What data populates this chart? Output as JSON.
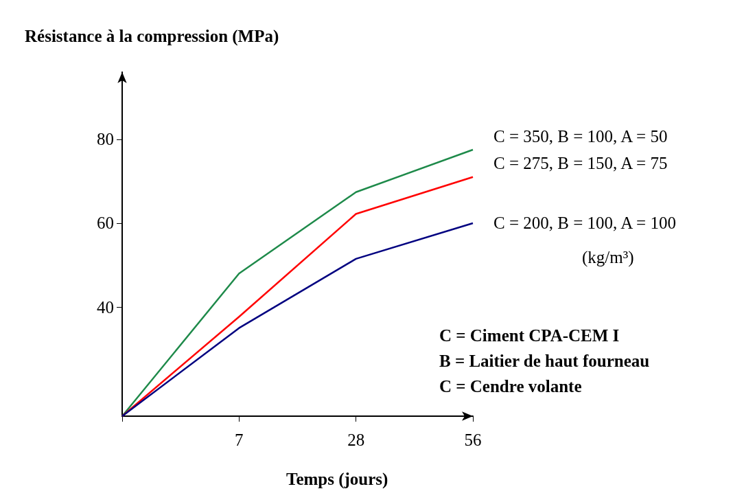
{
  "chart_data": {
    "type": "line",
    "ylabel": "Résistance à la compression (MPa)",
    "xlabel": "Temps (jours)",
    "categories": [
      null,
      "7",
      "28",
      "56"
    ],
    "ylim": [
      14,
      96
    ],
    "yticks": [
      40,
      60,
      80
    ],
    "grid": false,
    "legend": false,
    "marker": "none",
    "line_style": "solid",
    "series": [
      {
        "name": "C = 350, B = 100, A = 50",
        "color": "#1e8a4a",
        "values": [
          14,
          48,
          67.4,
          77.5
        ]
      },
      {
        "name": "C = 275, B = 150, A = 75",
        "color": "#ff0000",
        "values": [
          14,
          37.7,
          62.2,
          71
        ]
      },
      {
        "name": "C = 200, B = 100, A = 100",
        "color": "#000080",
        "values": [
          14,
          35,
          51.5,
          60
        ]
      }
    ],
    "annotations": [
      "(kg/m³)",
      "C = Ciment CPA-CEM I",
      "B = Laitier de haut fourneau",
      "C = Cendre volante"
    ]
  }
}
